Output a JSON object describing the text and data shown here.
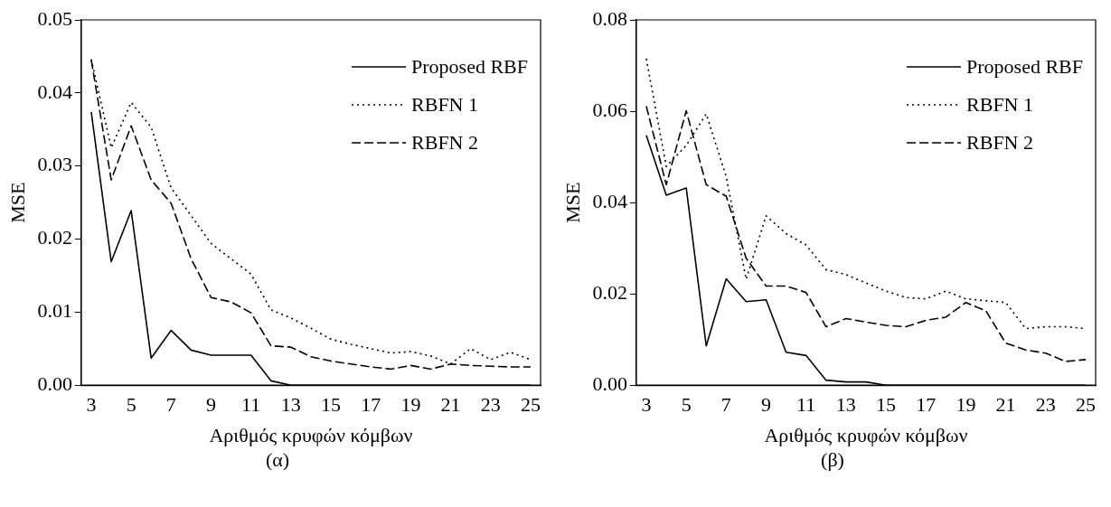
{
  "chart_data": [
    {
      "type": "line",
      "xlabel": "Αριθμός κρυφών κόμβων",
      "ylabel": "MSE",
      "annotations": [
        "(α)"
      ],
      "categories": [
        "3",
        null,
        "5",
        null,
        "7",
        null,
        "9",
        null,
        "11",
        null,
        "13",
        null,
        "15",
        null,
        "17",
        null,
        "19",
        null,
        "21",
        null,
        "23",
        null,
        "25"
      ],
      "series": [
        {
          "name": "Proposed RBF",
          "color": "#000000",
          "line_style": "solid",
          "values": [
            0.0374,
            0.0169,
            0.0239,
            0.0037,
            0.0075,
            0.0048,
            0.0041,
            0.0041,
            0.0041,
            0.0006,
            0,
            0,
            0,
            0,
            0,
            0,
            0,
            0,
            0,
            0,
            0,
            0,
            0
          ]
        },
        {
          "name": "RBFN 1",
          "color": "#000000",
          "line_style": "dotted",
          "values": [
            0.0446,
            0.0325,
            0.0387,
            0.0353,
            0.027,
            0.0232,
            0.0194,
            0.0173,
            0.0152,
            0.0103,
            0.0092,
            0.0078,
            0.0063,
            0.0056,
            0.005,
            0.0044,
            0.0046,
            0.004,
            0.0029,
            0.005,
            0.0035,
            0.0045,
            0.0035
          ]
        },
        {
          "name": "RBFN 2",
          "color": "#000000",
          "line_style": "dashed",
          "values": [
            0.0445,
            0.0281,
            0.0355,
            0.0281,
            0.0249,
            0.0173,
            0.012,
            0.0114,
            0.0099,
            0.0054,
            0.0052,
            0.0039,
            0.0033,
            0.0029,
            0.0025,
            0.0022,
            0.0027,
            0.0022,
            0.0029,
            0.0027,
            0.0026,
            0.0025,
            0.0025
          ]
        }
      ],
      "ylim": [
        0,
        0.05
      ],
      "yticks": [
        {
          "value": 0,
          "label": "0.00"
        },
        0.01,
        0.02,
        0.03,
        0.04,
        0.05
      ],
      "grid": false,
      "legend": "top right",
      "marker": "none"
    },
    {
      "type": "line",
      "xlabel": "Αριθμός κρυφών κόμβων",
      "ylabel": "MSE",
      "annotations": [
        "(β)"
      ],
      "categories": [
        "3",
        null,
        "5",
        null,
        "7",
        null,
        "9",
        null,
        "11",
        null,
        "13",
        null,
        "15",
        null,
        "17",
        null,
        "19",
        null,
        "21",
        null,
        "23",
        null,
        "25"
      ],
      "series": [
        {
          "name": "Proposed RBF",
          "color": "#000000",
          "line_style": "solid",
          "values": [
            0.0547,
            0.0416,
            0.0432,
            0.0086,
            0.0233,
            0.0183,
            0.0187,
            0.0072,
            0.0065,
            0.0011,
            0.0007,
            0.0007,
            0,
            0,
            0,
            0,
            0,
            0,
            0,
            0,
            0,
            0,
            0
          ]
        },
        {
          "name": "RBFN 1",
          "color": "#000000",
          "line_style": "dotted",
          "values": [
            0.0715,
            0.0479,
            0.0525,
            0.0594,
            0.0457,
            0.0232,
            0.0371,
            0.0332,
            0.0307,
            0.0253,
            0.0242,
            0.0224,
            0.0206,
            0.0192,
            0.0189,
            0.0206,
            0.0189,
            0.0185,
            0.0181,
            0.0124,
            0.0128,
            0.0128,
            0.0124
          ]
        },
        {
          "name": "RBFN 2",
          "color": "#000000",
          "line_style": "dashed",
          "values": [
            0.0611,
            0.0439,
            0.0601,
            0.0439,
            0.0414,
            0.0278,
            0.0217,
            0.0217,
            0.0203,
            0.0128,
            0.0146,
            0.0138,
            0.0131,
            0.0128,
            0.0142,
            0.0149,
            0.0181,
            0.0163,
            0.0092,
            0.0077,
            0.007,
            0.0052,
            0.0056
          ]
        }
      ],
      "ylim": [
        0,
        0.08
      ],
      "yticks": [
        {
          "value": 0,
          "label": "0.00"
        },
        0.02,
        0.04,
        0.06,
        0.08
      ],
      "grid": false,
      "legend": "top right",
      "marker": "none"
    }
  ]
}
